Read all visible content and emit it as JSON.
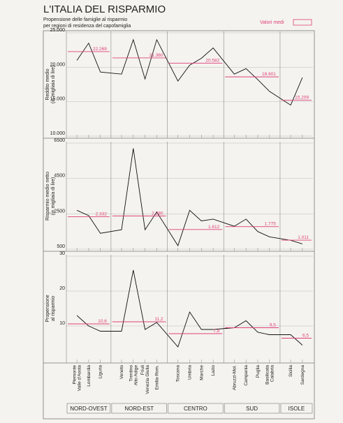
{
  "chart_data": {
    "type": "line",
    "title": "L'ITALIA DEL RISPARMIO",
    "subtitle": [
      "Propensione delle famiglie al risparmio",
      "per regioni di residenza del capofamiglia"
    ],
    "legend": "Valori medi",
    "line_color": "#111111",
    "mean_color": "#e0407a",
    "grid": true,
    "groups": [
      {
        "name": "NORD-OVEST",
        "categories": [
          [
            "Piemonte",
            "Valle d'Aosta"
          ],
          [
            "Lombardia"
          ],
          [
            "Liguria"
          ]
        ]
      },
      {
        "name": "NORD-EST",
        "categories": [
          [
            "Veneto"
          ],
          [
            "Trentino",
            "Alto Adige"
          ],
          [
            "Friuli",
            "Venezia Giulia"
          ],
          [
            "Emilia-Rom."
          ]
        ]
      },
      {
        "name": "CENTRO",
        "categories": [
          [
            "Toscana"
          ],
          [
            "Umbria"
          ],
          [
            "Marche"
          ],
          [
            "Lazio"
          ]
        ]
      },
      {
        "name": "SUD",
        "categories": [
          [
            "Abruzzi-Mol."
          ],
          [
            "Campania"
          ],
          [
            "Puglia"
          ],
          [
            "Basilicata",
            "Calabria"
          ]
        ]
      },
      {
        "name": "ISOLE",
        "categories": [
          [
            "Sicilia"
          ],
          [
            "Sardegna"
          ]
        ]
      }
    ],
    "panels": [
      {
        "ylabel": [
          "Reddito medio",
          "(in migliaia di lire)"
        ],
        "ylim": [
          10000,
          25000
        ],
        "yticks": [
          {
            "value": 10000,
            "label": "10.000"
          },
          {
            "value": 15000,
            "label": "15.000"
          },
          {
            "value": 20000,
            "label": "20.000"
          },
          {
            "value": 25000,
            "label": "25.000"
          }
        ],
        "values": [
          21000,
          23500,
          19300,
          19000,
          24000,
          18300,
          24000,
          18000,
          20300,
          21300,
          22800,
          19000,
          19800,
          18200,
          16500,
          14500,
          18500
        ],
        "means": [
          22269,
          21360,
          20582,
          18601,
          15209
        ],
        "mean_labels": [
          "22.269",
          "21.360",
          "20.582",
          "18.601",
          "15.209"
        ]
      },
      {
        "ylabel": [
          "Risparmio medio netto",
          "(in migliaia di lire)"
        ],
        "ylim": [
          500,
          6500
        ],
        "yticks": [
          500,
          2500,
          4500,
          6500
        ],
        "values": [
          2700,
          2400,
          1400,
          1600,
          6200,
          1600,
          2600,
          700,
          2700,
          2100,
          2200,
          1800,
          2200,
          1500,
          1200,
          1000,
          800
        ],
        "means": [
          2332,
          2380,
          1612,
          1775,
          1011
        ],
        "mean_labels": [
          "2.332",
          "2.380",
          "1.612",
          "1.775",
          "1.011"
        ]
      },
      {
        "ylabel": [
          "Propensione",
          "al risparmio"
        ],
        "ylim": [
          0,
          30
        ],
        "yticks": [
          10,
          20,
          30
        ],
        "values": [
          13,
          10,
          8.5,
          8.5,
          26,
          9,
          11,
          4,
          14,
          9,
          9,
          9.5,
          11.5,
          8.2,
          7.5,
          7.5,
          4.5
        ],
        "means": [
          10.6,
          11.2,
          7.8,
          9.5,
          6.5
        ],
        "mean_labels": [
          "10,6",
          "11,2",
          "7,8",
          "9,5",
          "6,5"
        ]
      }
    ]
  }
}
